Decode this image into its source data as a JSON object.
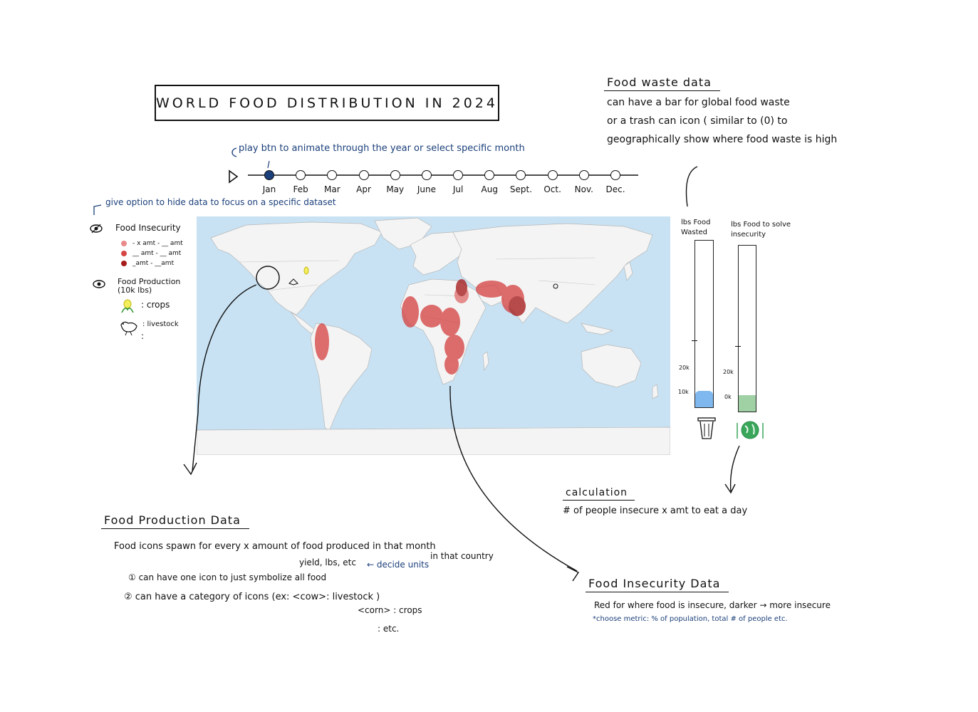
{
  "title": "WORLD FOOD DISTRIBUTION IN 2024",
  "timeline": {
    "note": "play btn to animate through the year or select specific month",
    "months": [
      "Jan",
      "Feb",
      "Mar",
      "Apr",
      "May",
      "June",
      "Jul",
      "Aug",
      "Sept.",
      "Oct.",
      "Nov.",
      "Dec."
    ],
    "selected": "Jan"
  },
  "legend": {
    "hide_note": "give option to hide data to focus on a specific dataset",
    "insecurity_title": "Food Insecurity",
    "insecurity_rows": [
      "- x amt - __ amt",
      "__ amt - __ amt",
      "_amt - __amt"
    ],
    "insecurity_colors": [
      "#e88a8a",
      "#d64545",
      "#a61b1b"
    ],
    "production_title": "Food Production (10k lbs)",
    "crops_label": ": crops",
    "livestock_label": ": livestock",
    "more": ":"
  },
  "waste": {
    "heading": "Food waste data",
    "lines": [
      "can have a bar for global food waste",
      "or a trash can icon ( similar to (0) to",
      "geographically show where food waste is high"
    ],
    "bar1_label": "lbs Food Wasted",
    "bar2_label": "lbs Food to solve insecurity",
    "bar1_ticks": [
      "20k",
      "10k"
    ],
    "bar2_ticks": [
      "20k",
      "0k"
    ],
    "bar1_fill": 0.1,
    "bar2_fill": 0.1,
    "bar1_color": "#7fb8ee",
    "bar2_color": "#9fd1a5"
  },
  "calculation": {
    "heading": "calculation",
    "formula": "# of people insecure x amt to eat a day"
  },
  "production": {
    "heading": "Food Production Data",
    "line1": "Food icons spawn for every x amount of food produced in that month",
    "line1b": "in that country",
    "units": "yield, lbs, etc",
    "decide": "← decide units",
    "opt1": "① can have one icon to just symbolize all food",
    "opt2": "② can have a category of icons (ex: <cow>: livestock )",
    "opt2b": "<corn> : crops",
    "etc": ": etc."
  },
  "insecurity": {
    "heading": "Food Insecurity Data",
    "line1": "Red for where food is insecure, darker → more insecure",
    "line2": "*choose metric: % of population, total # of people etc."
  }
}
